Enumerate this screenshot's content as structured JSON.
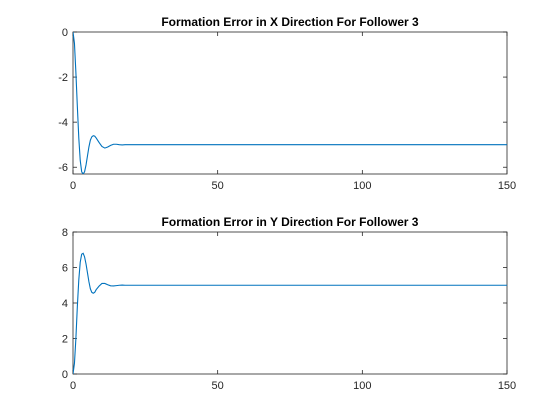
{
  "figure": {
    "background": "#ffffff"
  },
  "chart_data": [
    {
      "type": "line",
      "title": "Formation Error in X Direction For Follower 3",
      "xlabel": "",
      "ylabel": "",
      "xlim": [
        0,
        150
      ],
      "ylim": [
        -6.3,
        0
      ],
      "xticks": [
        0,
        50,
        100,
        150
      ],
      "yticks": [
        -6,
        -4,
        -2,
        0
      ],
      "grid": false,
      "series": [
        {
          "color": "#0072bd",
          "x": [
            0,
            0.5,
            1,
            1.5,
            2,
            2.5,
            3,
            3.5,
            4,
            4.5,
            5,
            5.5,
            6,
            6.5,
            7,
            7.5,
            8,
            9,
            10,
            11,
            12,
            13,
            14,
            15,
            16,
            17,
            18,
            20,
            25,
            30,
            150
          ],
          "y": [
            0,
            -0.5,
            -1.8,
            -3.3,
            -4.7,
            -5.7,
            -6.2,
            -6.3,
            -6.2,
            -5.9,
            -5.5,
            -5.1,
            -4.8,
            -4.65,
            -4.6,
            -4.62,
            -4.7,
            -4.9,
            -5.08,
            -5.15,
            -5.1,
            -5.03,
            -4.98,
            -4.98,
            -5.0,
            -5.01,
            -5.0,
            -5.0,
            -5.0,
            -5.0,
            -5.0
          ]
        }
      ]
    },
    {
      "type": "line",
      "title": "Formation Error in Y Direction For Follower 3",
      "xlabel": "",
      "ylabel": "",
      "xlim": [
        0,
        150
      ],
      "ylim": [
        0,
        8
      ],
      "xticks": [
        0,
        50,
        100,
        150
      ],
      "yticks": [
        0,
        2,
        4,
        6,
        8
      ],
      "grid": false,
      "series": [
        {
          "color": "#0072bd",
          "x": [
            0,
            0.5,
            1,
            1.5,
            2,
            2.5,
            3,
            3.5,
            4,
            4.5,
            5,
            5.5,
            6,
            6.5,
            7,
            7.5,
            8,
            9,
            10,
            11,
            12,
            13,
            14,
            15,
            16,
            17,
            18,
            20,
            25,
            30,
            150
          ],
          "y": [
            0,
            0.6,
            2.0,
            3.8,
            5.3,
            6.3,
            6.75,
            6.8,
            6.6,
            6.2,
            5.7,
            5.2,
            4.8,
            4.6,
            4.55,
            4.6,
            4.75,
            4.95,
            5.1,
            5.1,
            5.03,
            4.97,
            4.96,
            4.98,
            5.0,
            5.01,
            5.0,
            5.0,
            5.0,
            5.0,
            5.0
          ]
        }
      ]
    }
  ]
}
